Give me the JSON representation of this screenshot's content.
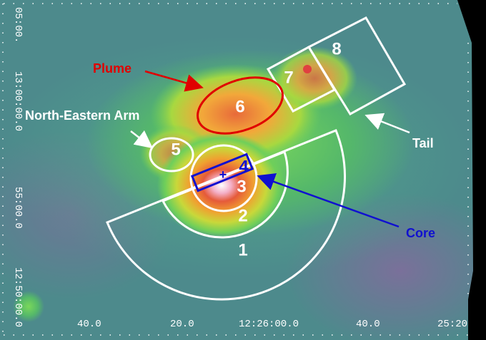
{
  "annotations": {
    "plume": "Plume",
    "north_eastern_arm": "North-Eastern Arm",
    "tail": "Tail",
    "core": "Core"
  },
  "regions": [
    "1",
    "2",
    "3",
    "4",
    "5",
    "6",
    "7",
    "8"
  ],
  "x_axis_labels": [
    "40.0",
    "20.0",
    "12:26:00.0",
    "40.0",
    "25:20"
  ],
  "y_axis_labels": [
    "05:00.",
    "13:00:00.0",
    "55:00.0",
    "12:50:00.0"
  ]
}
